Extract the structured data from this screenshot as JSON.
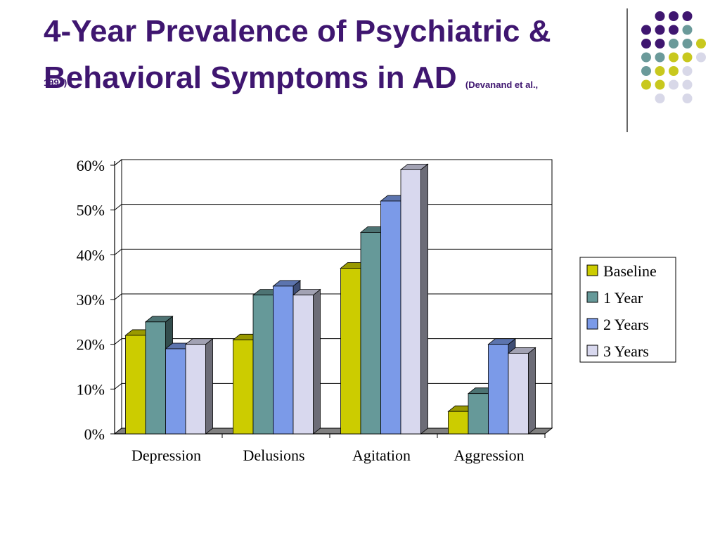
{
  "slide": {
    "title_line1": "4-Year Prevalence of Psychiatric &",
    "title_line2": "Behavioral Symptoms in AD",
    "citation_part1": "(Devanand et al.,",
    "citation_part2": "1997)"
  },
  "colors": {
    "title": "#3f1670",
    "dot_purple": "#3f1670",
    "dot_teal": "#6b9a9a",
    "dot_yellow": "#c8c81e",
    "dot_lavender": "#d8d8e8"
  },
  "chart_data": {
    "type": "bar",
    "style": "3d-clustered",
    "categories": [
      "Depression",
      "Delusions",
      "Agitation",
      "Aggression"
    ],
    "series": [
      {
        "name": "Baseline",
        "values": [
          22,
          21,
          37,
          5
        ],
        "color": "#cccc00"
      },
      {
        "name": "1 Year",
        "values": [
          25,
          31,
          45,
          9
        ],
        "color": "#669999"
      },
      {
        "name": "2 Years",
        "values": [
          19,
          33,
          52,
          20
        ],
        "color": "#7b9ae8"
      },
      {
        "name": "3 Years",
        "values": [
          20,
          31,
          59,
          18
        ],
        "color": "#d8d8ee"
      }
    ],
    "yticks": [
      "0%",
      "10%",
      "20%",
      "30%",
      "40%",
      "50%",
      "60%"
    ],
    "ylim": [
      0,
      60
    ],
    "grid": true,
    "legend": "right"
  }
}
